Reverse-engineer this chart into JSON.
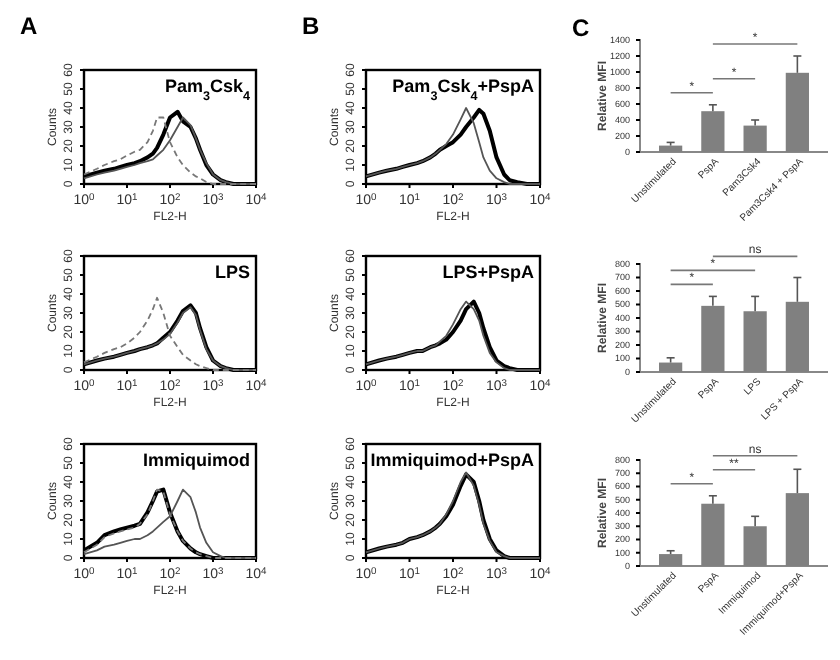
{
  "chart_data": [
    {
      "type": "line",
      "title": "Pam$_{3}$Csk$_{4}$",
      "xlabel": "FL2-H",
      "ylabel": "Counts",
      "annotations": [
        "A"
      ],
      "log": "x",
      "xlim": [
        1,
        10000
      ],
      "xticks": [
        {
          "value": 1,
          "label": "10$^{0}$"
        },
        {
          "value": 10,
          "label": "10$^{1}$"
        },
        {
          "value": 100,
          "label": "10$^{2}$"
        },
        {
          "value": 1000,
          "label": "10$^{3}$"
        },
        {
          "value": 10000,
          "label": "10$^{4}$"
        }
      ],
      "ylim": [
        0,
        60
      ],
      "yticks": [
        0,
        10,
        20,
        30,
        40,
        50,
        60
      ],
      "marker": "none",
      "x": [
        1,
        2,
        3,
        5,
        7,
        10,
        15,
        20,
        30,
        40,
        50,
        70,
        100,
        150,
        200,
        300,
        400,
        500,
        700,
        1000,
        1500,
        2000,
        3000,
        5000,
        10000
      ],
      "series": [
        {
          "color": "#000000",
          "line_style": "solid",
          "values": [
            4,
            6,
            7,
            8,
            9,
            10,
            11,
            12,
            14,
            16,
            19,
            26,
            35,
            38,
            33,
            30,
            24,
            18,
            10,
            5,
            2,
            1,
            0,
            0,
            0
          ]
        },
        {
          "color": "#555555",
          "line_style": "solid",
          "values": [
            3,
            5,
            6,
            7,
            8,
            9,
            10,
            11,
            12,
            13,
            15,
            18,
            23,
            30,
            35,
            31,
            24,
            18,
            11,
            5,
            2,
            1,
            0,
            0,
            0
          ]
        },
        {
          "color": "#777777",
          "line_style": "dashed",
          "values": [
            5,
            8,
            10,
            12,
            13,
            15,
            17,
            18,
            22,
            28,
            35,
            35,
            22,
            14,
            10,
            6,
            4,
            3,
            1,
            0,
            0,
            0,
            0,
            0,
            0
          ]
        }
      ]
    },
    {
      "type": "line",
      "title": "LPS",
      "xlabel": "FL2-H",
      "ylabel": "Counts",
      "log": "x",
      "xlim": [
        1,
        10000
      ],
      "xticks": [
        {
          "value": 1,
          "label": "10$^{0}$"
        },
        {
          "value": 10,
          "label": "10$^{1}$"
        },
        {
          "value": 100,
          "label": "10$^{2}$"
        },
        {
          "value": 1000,
          "label": "10$^{3}$"
        },
        {
          "value": 10000,
          "label": "10$^{4}$"
        }
      ],
      "ylim": [
        0,
        60
      ],
      "yticks": [
        0,
        10,
        20,
        30,
        40,
        50,
        60
      ],
      "marker": "none",
      "x": [
        1,
        2,
        3,
        5,
        7,
        10,
        15,
        20,
        30,
        40,
        50,
        70,
        100,
        150,
        200,
        300,
        400,
        500,
        700,
        1000,
        1500,
        2000,
        3000,
        5000,
        10000
      ],
      "series": [
        {
          "color": "#000000",
          "line_style": "solid",
          "values": [
            3,
            5,
            6,
            7,
            8,
            9,
            10,
            11,
            12,
            13,
            14,
            17,
            20,
            26,
            31,
            34,
            30,
            22,
            12,
            5,
            2,
            1,
            0,
            0,
            0
          ]
        },
        {
          "color": "#555555",
          "line_style": "solid",
          "values": [
            3,
            5,
            6,
            7,
            8,
            9,
            10,
            11,
            12,
            13,
            14,
            16,
            19,
            25,
            30,
            33,
            29,
            21,
            11,
            5,
            2,
            1,
            0,
            0,
            0
          ]
        },
        {
          "color": "#777777",
          "line_style": "dashed",
          "values": [
            4,
            7,
            9,
            11,
            12,
            14,
            17,
            20,
            26,
            32,
            38,
            30,
            18,
            12,
            8,
            5,
            3,
            2,
            1,
            0,
            0,
            0,
            0,
            0,
            0
          ]
        }
      ]
    },
    {
      "type": "line",
      "title": "Immiquimod",
      "xlabel": "FL2-H",
      "ylabel": "Counts",
      "log": "x",
      "xlim": [
        1,
        10000
      ],
      "xticks": [
        {
          "value": 1,
          "label": "10$^{0}$"
        },
        {
          "value": 10,
          "label": "10$^{1}$"
        },
        {
          "value": 100,
          "label": "10$^{2}$"
        },
        {
          "value": 1000,
          "label": "10$^{3}$"
        },
        {
          "value": 10000,
          "label": "10$^{4}$"
        }
      ],
      "ylim": [
        0,
        60
      ],
      "yticks": [
        0,
        10,
        20,
        30,
        40,
        50,
        60
      ],
      "marker": "none",
      "x": [
        1,
        2,
        3,
        5,
        7,
        10,
        15,
        20,
        30,
        40,
        50,
        70,
        100,
        150,
        200,
        300,
        400,
        500,
        700,
        1000,
        1500,
        2000,
        3000,
        5000,
        10000
      ],
      "series": [
        {
          "color": "#000000",
          "line_style": "solid",
          "values": [
            4,
            8,
            12,
            14,
            15,
            16,
            17,
            18,
            24,
            30,
            35,
            36,
            24,
            14,
            9,
            5,
            3,
            2,
            1,
            0,
            0,
            0,
            0,
            0,
            0
          ]
        },
        {
          "color": "#555555",
          "line_style": "solid",
          "values": [
            2,
            4,
            6,
            7,
            8,
            9,
            10,
            10,
            12,
            14,
            16,
            19,
            22,
            30,
            36,
            32,
            24,
            16,
            8,
            3,
            1,
            0,
            0,
            0,
            0
          ]
        },
        {
          "color": "#777777",
          "line_style": "dashed",
          "values": [
            3,
            7,
            11,
            13,
            14,
            15,
            16,
            18,
            23,
            30,
            36,
            35,
            23,
            14,
            9,
            5,
            3,
            2,
            1,
            0,
            0,
            0,
            0,
            0,
            0
          ]
        }
      ]
    },
    {
      "type": "line",
      "title": "Pam$_{3}$Csk$_{4}$+PspA",
      "xlabel": "FL2-H",
      "ylabel": "Counts",
      "annotations": [
        "B"
      ],
      "log": "x",
      "xlim": [
        1,
        10000
      ],
      "xticks": [
        {
          "value": 1,
          "label": "10$^{0}$"
        },
        {
          "value": 10,
          "label": "10$^{1}$"
        },
        {
          "value": 100,
          "label": "10$^{2}$"
        },
        {
          "value": 1000,
          "label": "10$^{3}$"
        },
        {
          "value": 10000,
          "label": "10$^{4}$"
        }
      ],
      "ylim": [
        0,
        60
      ],
      "yticks": [
        0,
        10,
        20,
        30,
        40,
        50,
        60
      ],
      "marker": "none",
      "x": [
        1,
        2,
        3,
        5,
        7,
        10,
        15,
        20,
        30,
        40,
        50,
        70,
        100,
        150,
        200,
        300,
        400,
        500,
        700,
        1000,
        1500,
        2000,
        3000,
        5000,
        10000
      ],
      "series": [
        {
          "color": "#000000",
          "line_style": "solid",
          "values": [
            4,
            6,
            7,
            8,
            9,
            10,
            11,
            12,
            14,
            16,
            18,
            20,
            22,
            26,
            30,
            35,
            39,
            37,
            28,
            14,
            5,
            2,
            1,
            0,
            0
          ]
        },
        {
          "color": "#555555",
          "line_style": "solid",
          "values": [
            4,
            6,
            7,
            8,
            9,
            10,
            11,
            12,
            14,
            16,
            18,
            21,
            26,
            34,
            40,
            32,
            22,
            14,
            7,
            3,
            1,
            0,
            0,
            0,
            0
          ]
        }
      ]
    },
    {
      "type": "line",
      "title": "LPS+PspA",
      "xlabel": "FL2-H",
      "ylabel": "Counts",
      "log": "x",
      "xlim": [
        1,
        10000
      ],
      "xticks": [
        {
          "value": 1,
          "label": "10$^{0}$"
        },
        {
          "value": 10,
          "label": "10$^{1}$"
        },
        {
          "value": 100,
          "label": "10$^{2}$"
        },
        {
          "value": 1000,
          "label": "10$^{3}$"
        },
        {
          "value": 10000,
          "label": "10$^{4}$"
        }
      ],
      "ylim": [
        0,
        60
      ],
      "yticks": [
        0,
        10,
        20,
        30,
        40,
        50,
        60
      ],
      "marker": "none",
      "x": [
        1,
        2,
        3,
        5,
        7,
        10,
        15,
        20,
        30,
        40,
        50,
        70,
        100,
        150,
        200,
        300,
        400,
        500,
        700,
        1000,
        1500,
        2000,
        3000,
        5000,
        10000
      ],
      "series": [
        {
          "color": "#000000",
          "line_style": "solid",
          "values": [
            3,
            5,
            6,
            7,
            8,
            9,
            10,
            10,
            12,
            13,
            14,
            16,
            20,
            26,
            32,
            36,
            30,
            22,
            12,
            5,
            2,
            1,
            0,
            0,
            0
          ]
        },
        {
          "color": "#555555",
          "line_style": "solid",
          "values": [
            3,
            5,
            6,
            7,
            8,
            9,
            10,
            10,
            12,
            13,
            15,
            18,
            24,
            32,
            36,
            32,
            26,
            18,
            9,
            4,
            1,
            0,
            0,
            0,
            0
          ]
        }
      ]
    },
    {
      "type": "line",
      "title": "Immiquimod+PspA",
      "xlabel": "FL2-H",
      "ylabel": "Counts",
      "log": "x",
      "xlim": [
        1,
        10000
      ],
      "xticks": [
        {
          "value": 1,
          "label": "10$^{0}$"
        },
        {
          "value": 10,
          "label": "10$^{1}$"
        },
        {
          "value": 100,
          "label": "10$^{2}$"
        },
        {
          "value": 1000,
          "label": "10$^{3}$"
        },
        {
          "value": 10000,
          "label": "10$^{4}$"
        }
      ],
      "ylim": [
        0,
        60
      ],
      "yticks": [
        0,
        10,
        20,
        30,
        40,
        50,
        60
      ],
      "marker": "none",
      "x": [
        1,
        2,
        3,
        5,
        7,
        10,
        15,
        20,
        30,
        40,
        50,
        70,
        100,
        150,
        200,
        300,
        400,
        500,
        700,
        1000,
        1500,
        2000,
        3000,
        5000,
        10000
      ],
      "series": [
        {
          "color": "#000000",
          "line_style": "solid",
          "values": [
            3,
            5,
            6,
            7,
            8,
            10,
            11,
            12,
            14,
            16,
            18,
            22,
            28,
            38,
            44,
            40,
            30,
            20,
            10,
            4,
            1,
            0,
            0,
            0,
            0
          ]
        },
        {
          "color": "#555555",
          "line_style": "solid",
          "values": [
            3,
            5,
            6,
            7,
            8,
            10,
            11,
            12,
            14,
            16,
            18,
            23,
            30,
            40,
            45,
            38,
            28,
            18,
            9,
            3,
            1,
            0,
            0,
            0,
            0
          ]
        }
      ]
    },
    {
      "type": "bar",
      "ylabel": "Relative MFI",
      "annotations": [
        "C",
        "*",
        "*",
        "*"
      ],
      "categories": [
        "Unstimulated",
        "PspA",
        "Pam3Csk4",
        "Pam3Csk4 + PspA"
      ],
      "values": [
        80,
        510,
        330,
        990
      ],
      "errors": [
        [
          80,
          120
        ],
        [
          510,
          590
        ],
        [
          330,
          400
        ],
        [
          990,
          1200
        ]
      ],
      "color": "#808080",
      "ylim": [
        0,
        1400
      ],
      "yticks": [
        0,
        200,
        400,
        600,
        800,
        1000,
        1200,
        1400
      ]
    },
    {
      "type": "bar",
      "ylabel": "Relative MFI",
      "annotations": [
        "*",
        "*",
        "ns"
      ],
      "categories": [
        "Unstimulated",
        "PspA",
        "LPS",
        "LPS + PspA"
      ],
      "values": [
        70,
        490,
        450,
        520
      ],
      "errors": [
        [
          70,
          105
        ],
        [
          490,
          560
        ],
        [
          450,
          560
        ],
        [
          520,
          700
        ]
      ],
      "color": "#808080",
      "ylim": [
        0,
        800
      ],
      "yticks": [
        0,
        100,
        200,
        300,
        400,
        500,
        600,
        700,
        800
      ]
    },
    {
      "type": "bar",
      "ylabel": "Relative MFI",
      "annotations": [
        "*",
        "**",
        "ns"
      ],
      "categories": [
        "Unstimulated",
        "PspA",
        "Immiquimod",
        "Immiquimod+PspA"
      ],
      "values": [
        90,
        470,
        300,
        550
      ],
      "errors": [
        [
          90,
          115
        ],
        [
          470,
          530
        ],
        [
          300,
          375
        ],
        [
          550,
          730
        ]
      ],
      "color": "#808080",
      "ylim": [
        0,
        800
      ],
      "yticks": [
        0,
        100,
        200,
        300,
        400,
        500,
        600,
        700,
        800
      ]
    }
  ]
}
